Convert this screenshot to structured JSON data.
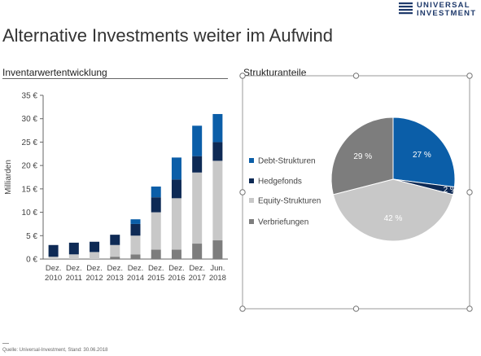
{
  "brand": {
    "logo_line1": "UNIVERSAL",
    "logo_line2": "INVESTMENT",
    "color": "#1f3a6b"
  },
  "title": "Alternative Investments weiter im Aufwind",
  "left_section": "Inventarwertentwicklung",
  "right_section": "Strukturanteile",
  "footer": "Quelle: Universal-Investment, Stand: 30.06.2018",
  "colors": {
    "debt": "#0b5ea8",
    "hedge": "#0e2a55",
    "equity": "#c8c8c8",
    "verbr": "#7d7d7d"
  },
  "chart_data": [
    {
      "type": "bar",
      "stacked": true,
      "categories": [
        [
          "Dez.",
          "2010"
        ],
        [
          "Dez.",
          "2011"
        ],
        [
          "Dez.",
          "2012"
        ],
        [
          "Dez.",
          "2013"
        ],
        [
          "Dez.",
          "2014"
        ],
        [
          "Dez.",
          "2015"
        ],
        [
          "Dez.",
          "2016"
        ],
        [
          "Dez.",
          "2017"
        ],
        [
          "Jun.",
          "2018"
        ]
      ],
      "ylabel": "Milliarden",
      "ylim": [
        0,
        35
      ],
      "yticks": [
        "0 €",
        "5 €",
        "10 €",
        "15 €",
        "20 €",
        "25 €",
        "30 €",
        "35 €"
      ],
      "series": [
        {
          "key": "verbr",
          "values": [
            0,
            0,
            0,
            0.5,
            1,
            2,
            2,
            3.3,
            4
          ]
        },
        {
          "key": "equity",
          "values": [
            0.5,
            1,
            1.5,
            2.5,
            4,
            8,
            11,
            15.2,
            17
          ]
        },
        {
          "key": "hedge",
          "values": [
            2.5,
            2.5,
            2.2,
            2.2,
            2.5,
            3.2,
            4,
            3.5,
            4
          ]
        },
        {
          "key": "debt",
          "values": [
            0,
            0,
            0,
            0,
            1,
            2.3,
            4.7,
            6.5,
            6
          ]
        }
      ]
    },
    {
      "type": "pie",
      "slices": [
        {
          "name": "Debt-Strukturen",
          "key": "debt",
          "value": 27,
          "label": "27 %"
        },
        {
          "name": "Hedgefonds",
          "key": "hedge",
          "value": 2,
          "label": "2 %"
        },
        {
          "name": "Equity-Strukturen",
          "key": "equity",
          "value": 42,
          "label": "42 %"
        },
        {
          "name": "Verbriefungen",
          "key": "verbr",
          "value": 29,
          "label": "29 %"
        }
      ],
      "legend_position": "left"
    }
  ]
}
